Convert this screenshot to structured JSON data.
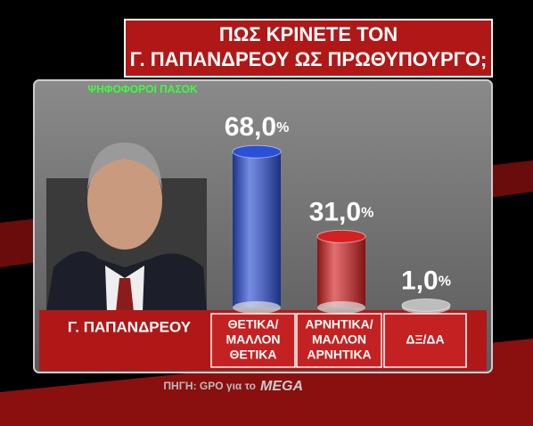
{
  "chart_data": {
    "type": "bar",
    "title": [
      "ΠΩΣ ΚΡΙΝΕΤΕ ΤΟΝ",
      "Γ. ΠΑΠΑΝΔΡΕΟΥ ΩΣ ΠΡΩΘΥΠΟΥΡΓΟ;"
    ],
    "subtitle": "ΨΗΦΟΦΟΡΟΙ ΠΑΣΟΚ",
    "row_label": "Γ. ΠΑΠΑΝΔΡΕΟΥ",
    "categories": [
      [
        "ΘΕΤΙΚΑ/",
        "ΜΑΛΛΟΝ",
        "ΘΕΤΙΚΑ"
      ],
      [
        "ΑΡΝΗΤΙΚΑ/",
        "ΜΑΛΛΟΝ",
        "ΑΡΝΗΤΙΚΑ"
      ],
      [
        "ΔΞ/ΔΑ"
      ]
    ],
    "values": [
      68,
      31,
      1
    ],
    "value_labels": [
      "68,0",
      "31,0",
      "1,0"
    ],
    "value_unit": "%",
    "colors": [
      "#2b4fd6",
      "#d42020",
      "#bdbdbd"
    ],
    "source": "ΠΗΓΗ: GPO για το",
    "logo": "MEGA"
  }
}
